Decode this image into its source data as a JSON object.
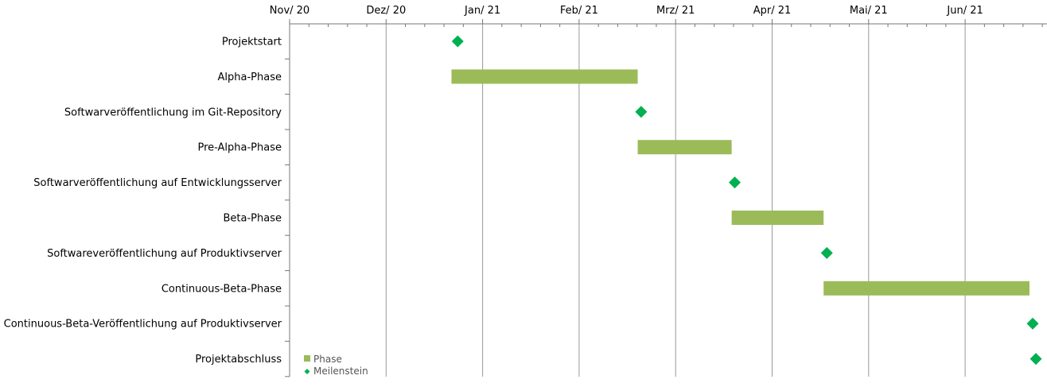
{
  "chart_data": {
    "type": "gantt",
    "title": "",
    "x_axis": {
      "type": "date",
      "range": [
        "2020-11-01",
        "2021-07-01"
      ],
      "ticks": [
        {
          "date": "2020-11-01",
          "label": "Nov/ 20"
        },
        {
          "date": "2020-12-01",
          "label": "Dez/ 20"
        },
        {
          "date": "2021-01-01",
          "label": "Jan/ 21"
        },
        {
          "date": "2021-02-01",
          "label": "Feb/ 21"
        },
        {
          "date": "2021-03-01",
          "label": "Mrz/ 21"
        },
        {
          "date": "2021-04-01",
          "label": "Apr/ 21"
        },
        {
          "date": "2021-05-01",
          "label": "Mai/ 21"
        },
        {
          "date": "2021-06-01",
          "label": "Jun/ 21"
        }
      ],
      "minor_ticks_per_month": 4,
      "grid": "major-vertical"
    },
    "tasks": [
      {
        "name": "Projektstart",
        "type": "milestone",
        "date": "2020-12-24"
      },
      {
        "name": "Alpha-Phase",
        "type": "phase",
        "start": "2020-12-22",
        "end": "2021-02-18"
      },
      {
        "name": "Softwarveröffentlichung im Git-Repository",
        "type": "milestone",
        "date": "2021-02-19"
      },
      {
        "name": "Pre-Alpha-Phase",
        "type": "phase",
        "start": "2021-02-18",
        "end": "2021-03-19"
      },
      {
        "name": "Softwarveröffentlichung auf Entwicklungsserver",
        "type": "milestone",
        "date": "2021-03-20"
      },
      {
        "name": "Beta-Phase",
        "type": "phase",
        "start": "2021-03-19",
        "end": "2021-04-17"
      },
      {
        "name": "Softwareveröffentlichung auf Produktivserver",
        "type": "milestone",
        "date": "2021-04-18"
      },
      {
        "name": "Continuous-Beta-Phase",
        "type": "phase",
        "start": "2021-04-17",
        "end": "2021-06-21"
      },
      {
        "name": "Continuous-Beta-Veröffentlichung auf Produktivserver",
        "type": "milestone",
        "date": "2021-06-22"
      },
      {
        "name": "Projektabschluss",
        "type": "milestone",
        "date": "2021-06-23"
      }
    ],
    "legend": {
      "position": "bottom-left",
      "items": [
        {
          "label": "Phase",
          "marker": "square",
          "color": "#9bbb59"
        },
        {
          "label": "Meilenstein",
          "marker": "diamond",
          "color": "#00b050"
        }
      ]
    },
    "colors": {
      "phase": "#9bbb59",
      "milestone": "#00b050",
      "grid": "#999999",
      "axis": "#777777"
    }
  }
}
